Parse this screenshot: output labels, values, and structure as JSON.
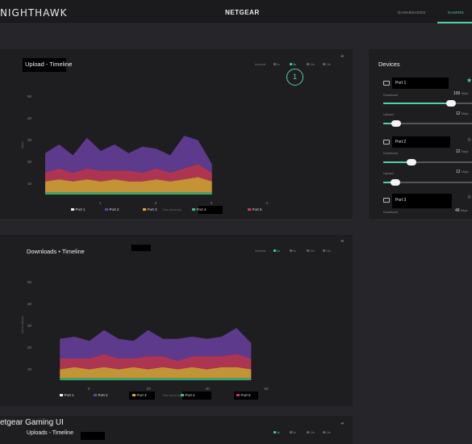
{
  "header": {
    "logo": "NIGHTHAWK",
    "brand": "NETGEAR",
    "nav": [
      "DASHBOARDS",
      "GAMING"
    ],
    "active_nav": "GAMING"
  },
  "upload_card": {
    "title": "Upload - Timeline",
    "range_label": "Interval",
    "ranges": [
      "1s",
      "5s",
      "10s",
      "15s"
    ],
    "active_range": "5s",
    "callout": "1",
    "x_caption": "Time (seconds)",
    "y_caption": "Mbps",
    "icon": "expand-icon"
  },
  "download_card": {
    "title": "Downloads • Timeline",
    "range_label": "Interval",
    "ranges": [
      "1s",
      "5s",
      "10s",
      "15s"
    ],
    "active_range": "1s",
    "x_caption": "Time (seconds)",
    "y_caption": "Speed (Mbps)",
    "icon": "expand-icon"
  },
  "bottom_card": {
    "overlay_title": "etgear Gaming UI",
    "title": "Uploads - Timeline",
    "ranges": [
      "1s",
      "5s",
      "10s",
      "15s"
    ],
    "active_range": "1s"
  },
  "devices": {
    "title": "Devices",
    "items": [
      {
        "name": "Port 1",
        "download_label": "Download",
        "download_value": "100",
        "download_unit": "Mbps",
        "download_fraction": 0.95,
        "upload_label": "Upload",
        "upload_value": "12",
        "upload_unit": "Mbps",
        "upload_fraction": 0.12,
        "status_icon": "star-icon"
      },
      {
        "name": "Port 2",
        "download_label": "Download",
        "download_value": "22",
        "download_unit": "Mbps",
        "download_fraction": 0.35,
        "upload_label": "Upload",
        "upload_value": "12",
        "upload_unit": "Mbps",
        "upload_fraction": 0.12,
        "status_icon": "settings-icon"
      },
      {
        "name": "Port 3",
        "download_label": "Download",
        "download_value": "48",
        "download_unit": "Mbps",
        "status_icon": "settings-icon"
      }
    ]
  },
  "colors": {
    "accent": "#4fd1a5",
    "port1": "#f2f2f2",
    "port2": "#6a3fa0",
    "port3": "#e0a83a",
    "port4": "#3fbf7f",
    "port5": "#c73a5a"
  },
  "chart_data": [
    {
      "type": "area",
      "title": "Upload - Timeline",
      "x": [
        0,
        0.25,
        0.5,
        0.75,
        1,
        1.25,
        1.5,
        1.75,
        2,
        2.25,
        2.5,
        2.75,
        3
      ],
      "x_ticks": [
        1,
        2,
        3,
        4
      ],
      "xlim": [
        0,
        4.5
      ],
      "y_ticks": [
        10,
        20,
        30,
        40,
        50
      ],
      "ylim": [
        5,
        55
      ],
      "stacked": true,
      "series": [
        {
          "name": "Port 4",
          "values": [
            1,
            1,
            1,
            1,
            1,
            1,
            1,
            1,
            1,
            1,
            1,
            1,
            1
          ]
        },
        {
          "name": "Port 3",
          "values": [
            5,
            6,
            5,
            6,
            5,
            6,
            5,
            5,
            6,
            5,
            6,
            7,
            5
          ]
        },
        {
          "name": "Port 5",
          "values": [
            4,
            5,
            4,
            5,
            5,
            4,
            5,
            4,
            5,
            4,
            5,
            6,
            4
          ]
        },
        {
          "name": "Port 2",
          "values": [
            9,
            11,
            8,
            14,
            9,
            12,
            8,
            12,
            9,
            8,
            15,
            11,
            4
          ]
        },
        {
          "name": "Port 1",
          "values": [
            0,
            0,
            0,
            0,
            0,
            0,
            0,
            0,
            0,
            0,
            0,
            0,
            0
          ]
        }
      ],
      "legend": [
        "Port 1",
        "Port 2",
        "Port 3",
        "Port 4",
        "Port 5"
      ],
      "legend_position": "bottom"
    },
    {
      "type": "area",
      "title": "Downloads • Timeline",
      "x": [
        -10,
        -5,
        0,
        5,
        10,
        15,
        20,
        25,
        30,
        35,
        40,
        45,
        50,
        55
      ],
      "x_ticks": [
        0,
        20,
        40,
        60
      ],
      "xlim": [
        -15,
        70
      ],
      "y_ticks": [
        10,
        20,
        30,
        40,
        50
      ],
      "ylim": [
        5,
        55
      ],
      "stacked": true,
      "series": [
        {
          "name": "Port 4",
          "values": [
            1,
            1,
            1,
            1,
            1,
            1,
            1,
            1,
            1,
            1,
            1,
            1,
            1,
            1
          ]
        },
        {
          "name": "Port 3",
          "values": [
            4,
            5,
            4,
            5,
            4,
            5,
            4,
            5,
            4,
            5,
            4,
            5,
            5,
            4
          ]
        },
        {
          "name": "Port 5",
          "values": [
            5,
            4,
            5,
            6,
            5,
            4,
            6,
            5,
            4,
            5,
            6,
            5,
            6,
            5
          ]
        },
        {
          "name": "Port 2",
          "values": [
            9,
            10,
            8,
            11,
            9,
            8,
            12,
            8,
            10,
            9,
            8,
            9,
            12,
            7
          ]
        },
        {
          "name": "Port 1",
          "values": [
            0,
            0,
            0,
            0,
            0,
            0,
            0,
            0,
            0,
            0,
            0,
            0,
            0,
            0
          ]
        }
      ],
      "legend": [
        "Port 1",
        "Port 2",
        "Port 3",
        "Port 4",
        "Port 5"
      ],
      "legend_position": "bottom"
    }
  ]
}
